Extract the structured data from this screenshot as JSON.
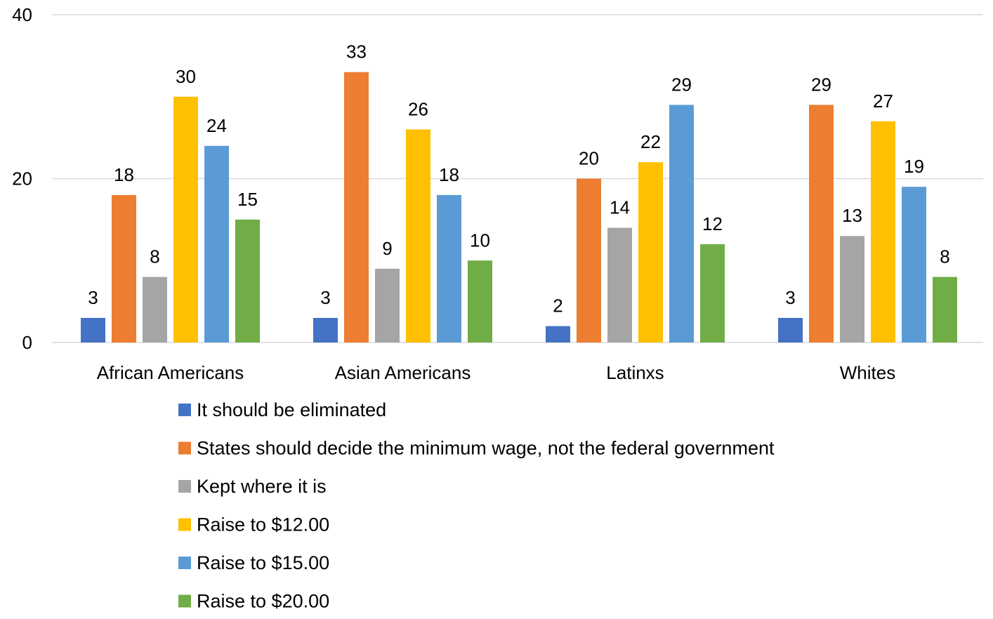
{
  "chart_data": {
    "type": "bar",
    "title": "",
    "xlabel": "",
    "ylabel": "",
    "ylim": [
      0,
      40
    ],
    "yticks": [
      0,
      20,
      40
    ],
    "grid": true,
    "legend_position": "bottom",
    "categories": [
      "African Americans",
      "Asian Americans",
      "Latinxs",
      "Whites"
    ],
    "series": [
      {
        "name": "It should be eliminated",
        "color": "#4472C4",
        "values": [
          3,
          3,
          2,
          3
        ]
      },
      {
        "name": "States should decide the minimum wage, not the federal government",
        "color": "#ED7D31",
        "values": [
          18,
          33,
          20,
          29
        ]
      },
      {
        "name": "Kept where it is",
        "color": "#A5A5A5",
        "values": [
          8,
          9,
          14,
          13
        ]
      },
      {
        "name": "Raise to $12.00",
        "color": "#FFC000",
        "values": [
          30,
          26,
          22,
          27
        ]
      },
      {
        "name": "Raise to $15.00",
        "color": "#5B9BD5",
        "values": [
          24,
          18,
          29,
          19
        ]
      },
      {
        "name": "Raise to $20.00",
        "color": "#70AD47",
        "values": [
          15,
          10,
          12,
          8
        ]
      }
    ]
  }
}
